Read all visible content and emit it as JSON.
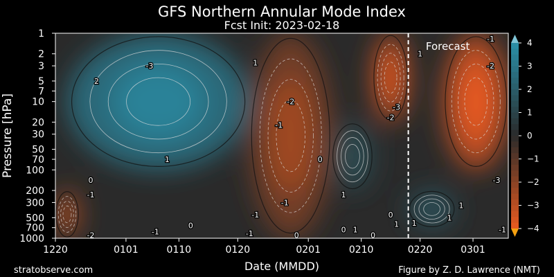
{
  "chart_data": {
    "type": "heatmap",
    "subtype": "filled-contour",
    "title": "GFS Northern Annular Mode Index",
    "subtitle": "Fcst Init: 2023-02-18",
    "xlabel": "Date (MMDD)",
    "ylabel": "Pressure [hPa]",
    "x_ticks": [
      "1220",
      "0101",
      "0110",
      "0120",
      "0201",
      "0210",
      "0220",
      "0301"
    ],
    "x_range": [
      "1220",
      "0307"
    ],
    "y_scale": "log-reversed",
    "y_ticks": [
      1,
      2,
      3,
      5,
      7,
      10,
      20,
      30,
      50,
      70,
      100,
      200,
      300,
      500,
      700,
      1000
    ],
    "y_range": [
      1000,
      1
    ],
    "colorbar": {
      "range": [
        -4,
        4
      ],
      "ticks": [
        4,
        3,
        2,
        1,
        0,
        -1,
        -2,
        -3,
        -4
      ],
      "extend": "both",
      "positive_color": "#2a8fa8",
      "neutral_color": "#2a2a2a",
      "negative_color": "#e85a20"
    },
    "forecast_marker": {
      "date": "0218",
      "label": "Forecast",
      "style": "dashed-white"
    },
    "regions": [
      {
        "period": "1220-1224",
        "levels": "200-1000 hPa",
        "value": -2.5
      },
      {
        "period": "1222-0122",
        "levels": "1-100 hPa",
        "value": 2.5,
        "peak": 3.5,
        "peak_near": "0105 / 3 hPa"
      },
      {
        "period": "0122-0205",
        "levels": "1-1000 hPa",
        "value": -1.5,
        "peak": -2.5,
        "peak_near": "0128 / 5 hPa"
      },
      {
        "period": "0205-0212",
        "levels": "20-200 hPa",
        "value": 1.2
      },
      {
        "period": "0212-0218",
        "levels": "1-20 hPa",
        "value": -3.0,
        "peak": -3.8
      },
      {
        "period": "0218-0226",
        "levels": "200-700 hPa",
        "value": 1.5
      },
      {
        "period": "0224-0307",
        "levels": "1-100 hPa",
        "value": -3.0,
        "peak": -4.0
      }
    ],
    "contour_labels": [
      {
        "text": "-3",
        "date": "0105",
        "p": 3
      },
      {
        "text": "2",
        "date": "1227",
        "p": 5
      },
      {
        "text": "1",
        "date": "0108",
        "p": 70
      },
      {
        "text": "-1",
        "date": "1226",
        "p": 230
      },
      {
        "text": "0",
        "date": "1226",
        "p": 140
      },
      {
        "text": "-2",
        "date": "1226",
        "p": 900
      },
      {
        "text": "-1",
        "date": "0106",
        "p": 800
      },
      {
        "text": "0",
        "date": "0112",
        "p": 650
      },
      {
        "text": "1",
        "date": "0123",
        "p": 2.7
      },
      {
        "text": "-1",
        "date": "0123",
        "p": 450
      },
      {
        "text": "-1",
        "date": "0122",
        "p": 850
      },
      {
        "text": "-2",
        "date": "0129",
        "p": 10
      },
      {
        "text": "-1",
        "date": "0127",
        "p": 22
      },
      {
        "text": "-1",
        "date": "0128",
        "p": 300
      },
      {
        "text": "0",
        "date": "0130",
        "p": 900
      },
      {
        "text": "0",
        "date": "0203",
        "p": 70
      },
      {
        "text": "1",
        "date": "0207",
        "p": 230
      },
      {
        "text": "0",
        "date": "0207",
        "p": 750
      },
      {
        "text": "1",
        "date": "0209",
        "p": 750
      },
      {
        "text": "0",
        "date": "0212",
        "p": 900
      },
      {
        "text": "-2",
        "date": "0215",
        "p": 17
      },
      {
        "text": "-3",
        "date": "0216",
        "p": 12
      },
      {
        "text": "0",
        "date": "0215",
        "p": 450
      },
      {
        "text": "1",
        "date": "0216",
        "p": 620
      },
      {
        "text": "1",
        "date": "0219",
        "p": 600
      },
      {
        "text": "1",
        "date": "0220",
        "p": 2
      },
      {
        "text": "1",
        "date": "0225",
        "p": 500
      },
      {
        "text": "1",
        "date": "0227",
        "p": 330
      },
      {
        "text": "-1",
        "date": "0304",
        "p": 1.2
      },
      {
        "text": "-2",
        "date": "0304",
        "p": 3
      },
      {
        "text": "-3",
        "date": "0305",
        "p": 140
      },
      {
        "text": "-1",
        "date": "0306",
        "p": 750
      }
    ]
  },
  "footer": {
    "left": "stratobserve.com",
    "right": "Figure by Z. D. Lawrence (NMT)"
  }
}
